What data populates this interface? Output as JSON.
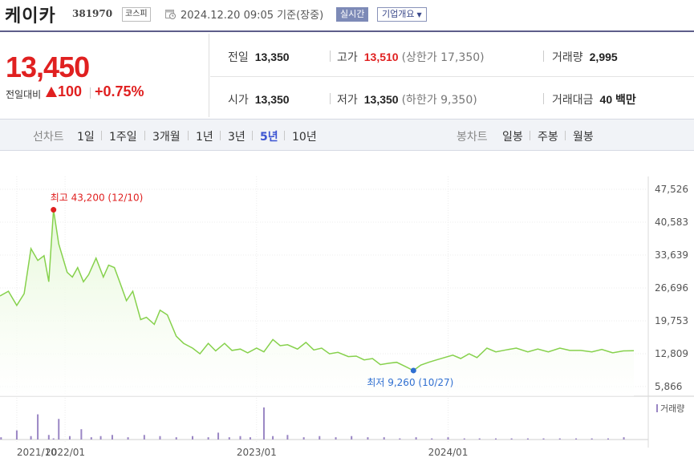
{
  "header": {
    "stock_name": "케이카",
    "stock_code": "381970",
    "market": "코스피",
    "datetime": "2024.12.20 09:05 기준(장중)",
    "realtime_label": "실시간",
    "company_label": "기업개요",
    "company_arrow": "▼"
  },
  "price": {
    "current": "13,450",
    "change_label": "전일대비",
    "change": "100",
    "change_pct": "+0.75%"
  },
  "info": {
    "prev_close_label": "전일",
    "prev_close": "13,350",
    "high_label": "고가",
    "high": "13,510",
    "upper_limit": "(상한가 17,350)",
    "volume_label": "거래량",
    "volume": "2,995",
    "open_label": "시가",
    "open": "13,350",
    "low_label": "저가",
    "low": "13,350",
    "lower_limit": "(하한가 9,350)",
    "amount_label": "거래대금",
    "amount": "40 백만"
  },
  "tabs": {
    "line_chart_label": "선차트",
    "periods": [
      "1일",
      "1주일",
      "3개월",
      "1년",
      "3년",
      "5년",
      "10년"
    ],
    "active_period": "5년",
    "candle_label": "봉차트",
    "candles": [
      "일봉",
      "주봉",
      "월봉"
    ]
  },
  "colors": {
    "up": "#e02020",
    "line": "#86d14c",
    "fill": "#e6f8d8",
    "volume_bar": "#9a86c4",
    "active_tab": "#3d55d2"
  },
  "chart_data": {
    "type": "area",
    "y_ticks": [
      "47,526",
      "40,583",
      "33,639",
      "26,696",
      "19,753",
      "12,809",
      "5,866"
    ],
    "ylim": [
      5866,
      47526
    ],
    "x_labels": [
      "2021/10",
      "2022/01",
      "2023/01",
      "2024/01"
    ],
    "x_label_dates": [
      "2021-10-01",
      "2022-01-01",
      "2023-01-01",
      "2024-01-01"
    ],
    "max_annotation": {
      "label": "최고 43,200 (12/10)",
      "date": "2021-12-10",
      "value": 43200
    },
    "min_annotation": {
      "label": "최저 9,260 (10/27)",
      "date": "2023-10-27",
      "value": 9260
    },
    "volume_label": "거래량",
    "series": {
      "dates": [
        "2021-08-30",
        "2021-09-15",
        "2021-10-01",
        "2021-10-15",
        "2021-10-28",
        "2021-11-10",
        "2021-11-22",
        "2021-12-01",
        "2021-12-10",
        "2021-12-20",
        "2022-01-05",
        "2022-01-15",
        "2022-01-25",
        "2022-02-05",
        "2022-02-15",
        "2022-03-01",
        "2022-03-15",
        "2022-03-25",
        "2022-04-05",
        "2022-04-15",
        "2022-04-28",
        "2022-05-10",
        "2022-05-25",
        "2022-06-05",
        "2022-06-20",
        "2022-07-01",
        "2022-07-15",
        "2022-08-01",
        "2022-08-15",
        "2022-09-01",
        "2022-09-15",
        "2022-10-01",
        "2022-10-15",
        "2022-11-01",
        "2022-11-15",
        "2022-12-01",
        "2022-12-15",
        "2023-01-01",
        "2023-01-15",
        "2023-02-01",
        "2023-02-15",
        "2023-03-01",
        "2023-03-20",
        "2023-04-05",
        "2023-04-20",
        "2023-05-05",
        "2023-05-20",
        "2023-06-05",
        "2023-06-25",
        "2023-07-10",
        "2023-07-25",
        "2023-08-10",
        "2023-08-25",
        "2023-09-10",
        "2023-09-25",
        "2023-10-10",
        "2023-10-27",
        "2023-11-10",
        "2023-11-25",
        "2023-12-10",
        "2023-12-25",
        "2024-01-10",
        "2024-01-25",
        "2024-02-10",
        "2024-02-25",
        "2024-03-15",
        "2024-04-01",
        "2024-04-20",
        "2024-05-10",
        "2024-06-01",
        "2024-06-20",
        "2024-07-10",
        "2024-08-01",
        "2024-08-20",
        "2024-09-10",
        "2024-10-01",
        "2024-10-20",
        "2024-11-10",
        "2024-11-30",
        "2024-12-20"
      ],
      "values": [
        25000,
        26000,
        23000,
        25500,
        35000,
        32500,
        33500,
        28000,
        43200,
        36000,
        30000,
        29000,
        31000,
        28000,
        29500,
        33000,
        29000,
        31500,
        31000,
        28000,
        24000,
        26000,
        20000,
        20500,
        19000,
        22000,
        21000,
        16500,
        15000,
        14000,
        12800,
        15000,
        13400,
        15000,
        13500,
        13800,
        13000,
        14000,
        13200,
        15800,
        14500,
        14700,
        13800,
        15200,
        13600,
        14000,
        12800,
        13100,
        12200,
        12300,
        11500,
        11800,
        10500,
        10800,
        11000,
        10200,
        9260,
        10400,
        11000,
        11500,
        12000,
        12500,
        11800,
        12800,
        12000,
        14000,
        13200,
        13600,
        14000,
        13200,
        13800,
        13200,
        14000,
        13500,
        13500,
        13200,
        13700,
        13000,
        13400,
        13450
      ]
    },
    "volume_series": {
      "dates": [
        "2021-09-01",
        "2021-10-01",
        "2021-10-28",
        "2021-11-10",
        "2021-12-01",
        "2021-12-10",
        "2021-12-20",
        "2022-01-10",
        "2022-02-01",
        "2022-02-20",
        "2022-03-10",
        "2022-04-01",
        "2022-05-01",
        "2022-06-01",
        "2022-07-01",
        "2022-08-01",
        "2022-09-01",
        "2022-10-01",
        "2022-10-20",
        "2022-11-10",
        "2022-12-01",
        "2022-12-20",
        "2023-01-15",
        "2023-02-01",
        "2023-03-01",
        "2023-04-01",
        "2023-05-01",
        "2023-06-01",
        "2023-07-01",
        "2023-08-01",
        "2023-09-01",
        "2023-10-01",
        "2023-11-01",
        "2023-12-01",
        "2024-01-01",
        "2024-02-01",
        "2024-03-01",
        "2024-04-01",
        "2024-05-01",
        "2024-06-01",
        "2024-07-01",
        "2024-08-01",
        "2024-09-01",
        "2024-10-01",
        "2024-11-01",
        "2024-12-01"
      ],
      "values": [
        2,
        8,
        3,
        22,
        4,
        1,
        18,
        3,
        9,
        2,
        3,
        4,
        2,
        4,
        3,
        2,
        3,
        2,
        6,
        2,
        3,
        2,
        28,
        3,
        4,
        2,
        3,
        2,
        3,
        2,
        2,
        1,
        2,
        1,
        2,
        1,
        1,
        1,
        1,
        1,
        1,
        1,
        1,
        1,
        1,
        2
      ]
    }
  }
}
